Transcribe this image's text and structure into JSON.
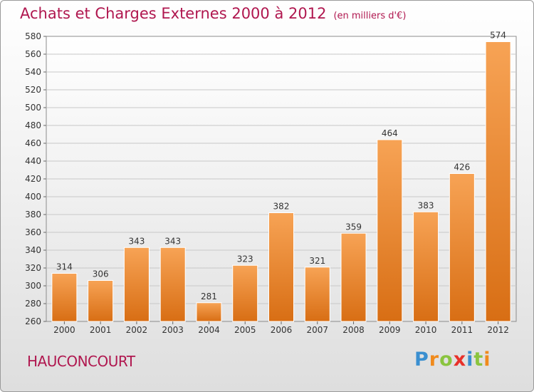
{
  "chart_data": {
    "type": "bar",
    "title": "Achats et Charges Externes 2000 à 2012",
    "unit": "(en milliers d'€)",
    "categories": [
      "2000",
      "2001",
      "2002",
      "2003",
      "2004",
      "2005",
      "2006",
      "2007",
      "2008",
      "2009",
      "2010",
      "2011",
      "2012"
    ],
    "values": [
      314,
      306,
      343,
      343,
      281,
      323,
      382,
      321,
      359,
      464,
      383,
      426,
      574
    ],
    "ylim": [
      260,
      580
    ],
    "ytick_step": 20,
    "grid": true,
    "bar_color": "#f0953e",
    "legend": "none"
  },
  "footer": {
    "commune": "HAUCONCOURT",
    "logo_letters": [
      {
        "ch": "P",
        "color": "#3a8fd0"
      },
      {
        "ch": "r",
        "color": "#f08a1c"
      },
      {
        "ch": "o",
        "color": "#8ac43f"
      },
      {
        "ch": "x",
        "color": "#e8312a"
      },
      {
        "ch": "i",
        "color": "#3a8fd0"
      },
      {
        "ch": "t",
        "color": "#8ac43f"
      },
      {
        "ch": "i",
        "color": "#f08a1c"
      }
    ]
  },
  "colors": {
    "title": "#b0174f",
    "axis_text": "#333333"
  }
}
